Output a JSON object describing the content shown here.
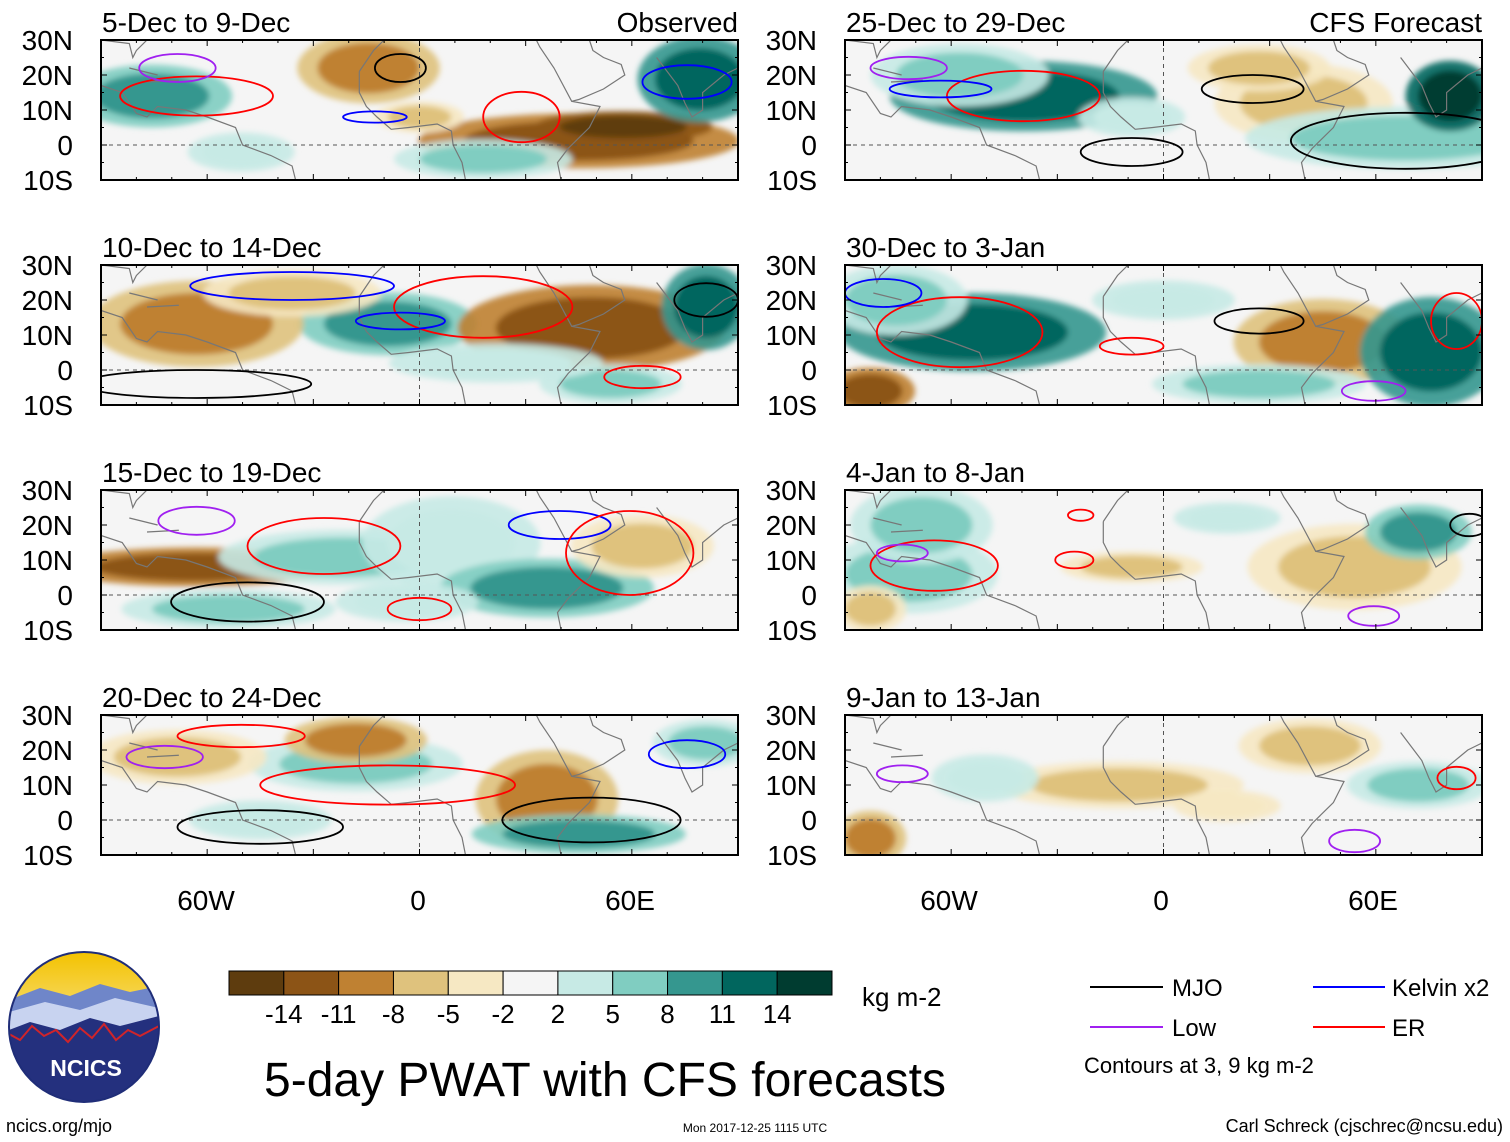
{
  "figure": {
    "title": "5-day PWAT with CFS forecasts",
    "units": "kg m-2",
    "website": "ncics.org/mjo",
    "timestamp": "Mon 2017-12-25 1115 UTC",
    "author": "Carl Schreck (cjschrec@ncsu.edu)",
    "logo_text": "NCICS"
  },
  "left_column": {
    "label": "Observed",
    "panels": [
      "5-Dec to 9-Dec",
      "10-Dec to 14-Dec",
      "15-Dec to 19-Dec",
      "20-Dec to 24-Dec"
    ]
  },
  "right_column": {
    "label": "CFS Forecast",
    "panels": [
      "25-Dec to 29-Dec",
      "30-Dec to 3-Jan",
      "4-Jan to 8-Jan",
      "9-Jan to 13-Jan"
    ]
  },
  "axes": {
    "lat_ticks": [
      "30N",
      "20N",
      "10N",
      "0",
      "10S"
    ],
    "lon_ticks": [
      "60W",
      "0",
      "60E"
    ],
    "lon_range_deg": [
      -90,
      90
    ],
    "lat_range_deg": [
      -10,
      30
    ]
  },
  "colorbar": {
    "labels": [
      "-14",
      "-11",
      "-8",
      "-5",
      "-2",
      "2",
      "5",
      "8",
      "11",
      "14"
    ],
    "colors": [
      "#5e3c0e",
      "#8c5416",
      "#bf8132",
      "#dfc27d",
      "#f6e8c3",
      "#f5f5f5",
      "#c7eae5",
      "#80cdc1",
      "#35978f",
      "#01665e",
      "#003c30"
    ]
  },
  "legend": {
    "items": [
      {
        "label": "MJO",
        "color": "#000000"
      },
      {
        "label": "Kelvin x2",
        "color": "#0000ff"
      },
      {
        "label": "Low",
        "color": "#a020f0"
      },
      {
        "label": "ER",
        "color": "#ff0000"
      }
    ],
    "note": "Contours at 3, 9 kg m-2"
  }
}
